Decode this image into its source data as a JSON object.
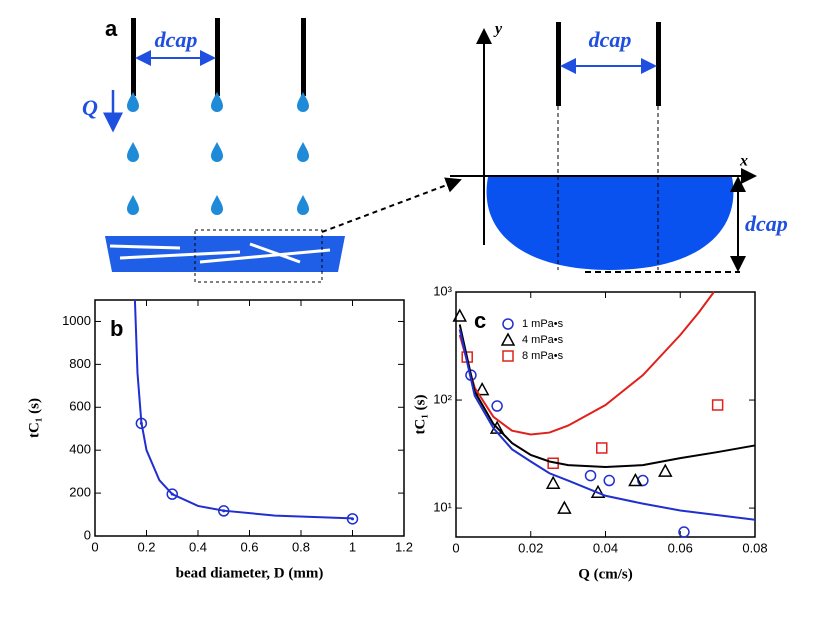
{
  "diagram": {
    "panel": "a",
    "spacing": "dcap",
    "flow": "Q",
    "y_axis": "y",
    "x_axis": "x",
    "spacing_right": "dcap",
    "depth": "dcap"
  },
  "chart_data": [
    {
      "type": "scatter",
      "panel": "b",
      "xlabel": "bead diameter, D (mm)",
      "ylabel": "tC₁ (s)",
      "xlim": [
        0,
        1.2
      ],
      "ylim": [
        0,
        1100
      ],
      "xticks": [
        0,
        0.2,
        0.4,
        0.6,
        0.8,
        1,
        1.2
      ],
      "yticks": [
        0,
        200,
        400,
        600,
        800,
        1000
      ],
      "log": false,
      "series": [
        {
          "type": "scatter",
          "marker": "circle",
          "color": "#1f2fd0",
          "x": [
            0.18,
            0.3,
            0.5,
            1.0
          ],
          "values": [
            525,
            195,
            117,
            80
          ]
        },
        {
          "type": "line",
          "color": "#1f2fd0",
          "x": [
            0.155,
            0.165,
            0.18,
            0.2,
            0.25,
            0.3,
            0.4,
            0.5,
            0.7,
            1.0
          ],
          "values": [
            1100,
            760,
            530,
            400,
            260,
            195,
            140,
            118,
            95,
            82
          ]
        }
      ]
    },
    {
      "type": "scatter",
      "panel": "c",
      "xlabel": "Q (cm/s)",
      "ylabel": "tC₁ (s)",
      "xlim": [
        0,
        0.08
      ],
      "ylim": [
        5.4,
        1000
      ],
      "xticks": [
        0,
        0.02,
        0.04,
        0.06,
        0.08
      ],
      "yticks": [
        {
          "value": 10,
          "label": "10¹"
        },
        {
          "value": 100,
          "label": "10²"
        },
        {
          "value": 1000,
          "label": "10³"
        }
      ],
      "log": true,
      "series": [
        {
          "type": "scatter",
          "name": "1 mPa•s",
          "marker": "circle",
          "color": "#1f2fd0",
          "x": [
            0.004,
            0.011,
            0.036,
            0.041,
            0.05,
            0.061
          ],
          "values": [
            170,
            88,
            20,
            18,
            18,
            6
          ]
        },
        {
          "type": "scatter",
          "name": "4 mPa•s",
          "marker": "triangle",
          "color": "#000000",
          "x": [
            0.001,
            0.007,
            0.011,
            0.026,
            0.029,
            0.038,
            0.048,
            0.056
          ],
          "values": [
            600,
            125,
            55,
            17,
            10,
            14,
            18,
            22
          ]
        },
        {
          "type": "scatter",
          "name": "8 mPa•s",
          "marker": "square",
          "color": "#e0201b",
          "x": [
            0.003,
            0.026,
            0.039,
            0.07
          ],
          "values": [
            250,
            26,
            36,
            90
          ]
        },
        {
          "type": "line",
          "color": "#e0201b",
          "x": [
            0.001,
            0.005,
            0.01,
            0.015,
            0.02,
            0.025,
            0.03,
            0.04,
            0.05,
            0.06,
            0.065,
            0.069
          ],
          "values": [
            400,
            130,
            70,
            52,
            48,
            50,
            58,
            90,
            170,
            400,
            650,
            1000
          ]
        },
        {
          "type": "line",
          "color": "#000000",
          "x": [
            0.001,
            0.005,
            0.01,
            0.015,
            0.02,
            0.025,
            0.03,
            0.04,
            0.05,
            0.06,
            0.07,
            0.08
          ],
          "values": [
            500,
            120,
            60,
            40,
            31,
            27,
            25,
            24,
            25,
            29,
            33,
            38
          ]
        },
        {
          "type": "line",
          "color": "#1f2fd0",
          "x": [
            0.001,
            0.005,
            0.01,
            0.015,
            0.02,
            0.025,
            0.03,
            0.04,
            0.05,
            0.06,
            0.07,
            0.08
          ],
          "values": [
            450,
            110,
            55,
            35,
            27,
            21,
            18,
            13,
            11,
            9.5,
            8.6,
            7.8
          ]
        }
      ]
    }
  ]
}
